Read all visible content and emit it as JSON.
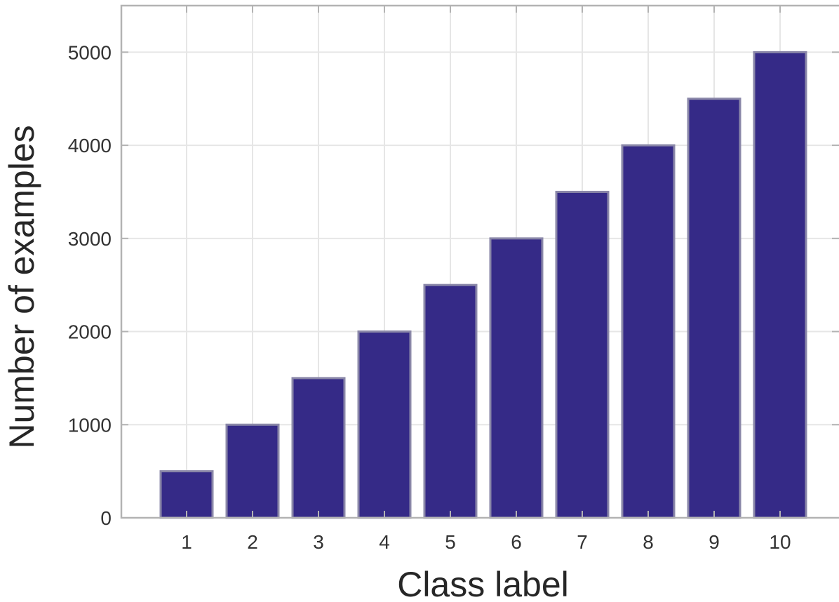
{
  "chart_data": {
    "type": "bar",
    "categories": [
      "1",
      "2",
      "3",
      "4",
      "5",
      "6",
      "7",
      "8",
      "9",
      "10"
    ],
    "values": [
      500,
      1000,
      1500,
      2000,
      2500,
      3000,
      3500,
      4000,
      4500,
      5000
    ],
    "title": "",
    "xlabel": "Class label",
    "ylabel": "Number of examples",
    "ylim": [
      0,
      5500
    ],
    "yticks": [
      "0",
      "1000",
      "2000",
      "3000",
      "4000",
      "5000"
    ],
    "grid": true,
    "colors": {
      "bar": "#352a87"
    }
  }
}
